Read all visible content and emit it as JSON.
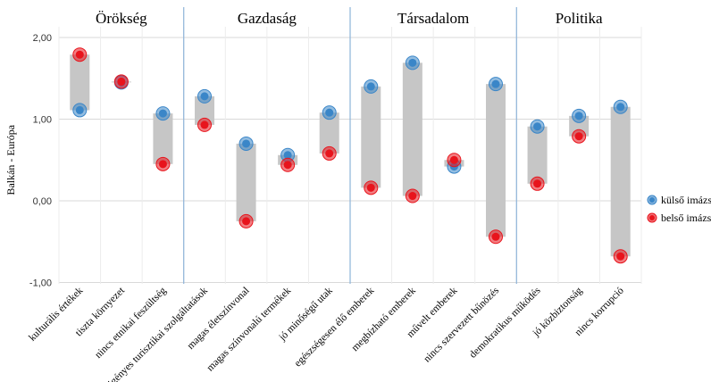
{
  "chart_data": {
    "type": "dumbbell",
    "ylabel": "Balkán - Európa",
    "ylim": [
      -1.0,
      2.0
    ],
    "yticks": [
      "-1,00",
      "0,00",
      "1,00",
      "2,00"
    ],
    "ytick_values": [
      -1,
      0,
      1,
      2
    ],
    "grid": true,
    "legend_position": "right",
    "groups": [
      {
        "name": "Örökség",
        "start": 0,
        "count": 3
      },
      {
        "name": "Gazdaság",
        "start": 3,
        "count": 4
      },
      {
        "name": "Társadalom",
        "start": 7,
        "count": 4
      },
      {
        "name": "Politika",
        "start": 11,
        "count": 3
      }
    ],
    "categories": [
      "kulturális értékek",
      "tiszta környezet",
      "nincs etnikai feszültség",
      "igényes turisztikai szolgáltatások",
      "magas életszínvonal",
      "magas színvonalú termékek",
      "jó minőségű utak",
      "egészségesen élő emberek",
      "megbízható emberek",
      "művelt emberek",
      "nincs szervezett bűnözés",
      "demokratikus működés",
      "jó közbiztonság",
      "nincs korrupció"
    ],
    "series": [
      {
        "name": "külső imázs",
        "color": "#3a86c8",
        "values": [
          1.11,
          1.45,
          1.07,
          1.28,
          0.7,
          0.56,
          1.08,
          1.4,
          1.69,
          0.42,
          1.43,
          0.91,
          1.04,
          1.15
        ]
      },
      {
        "name": "belső imázs",
        "color": "#e8141c",
        "values": [
          1.79,
          1.46,
          0.45,
          0.93,
          -0.25,
          0.44,
          0.58,
          0.16,
          0.06,
          0.5,
          -0.44,
          0.21,
          0.79,
          -0.68
        ]
      }
    ]
  }
}
